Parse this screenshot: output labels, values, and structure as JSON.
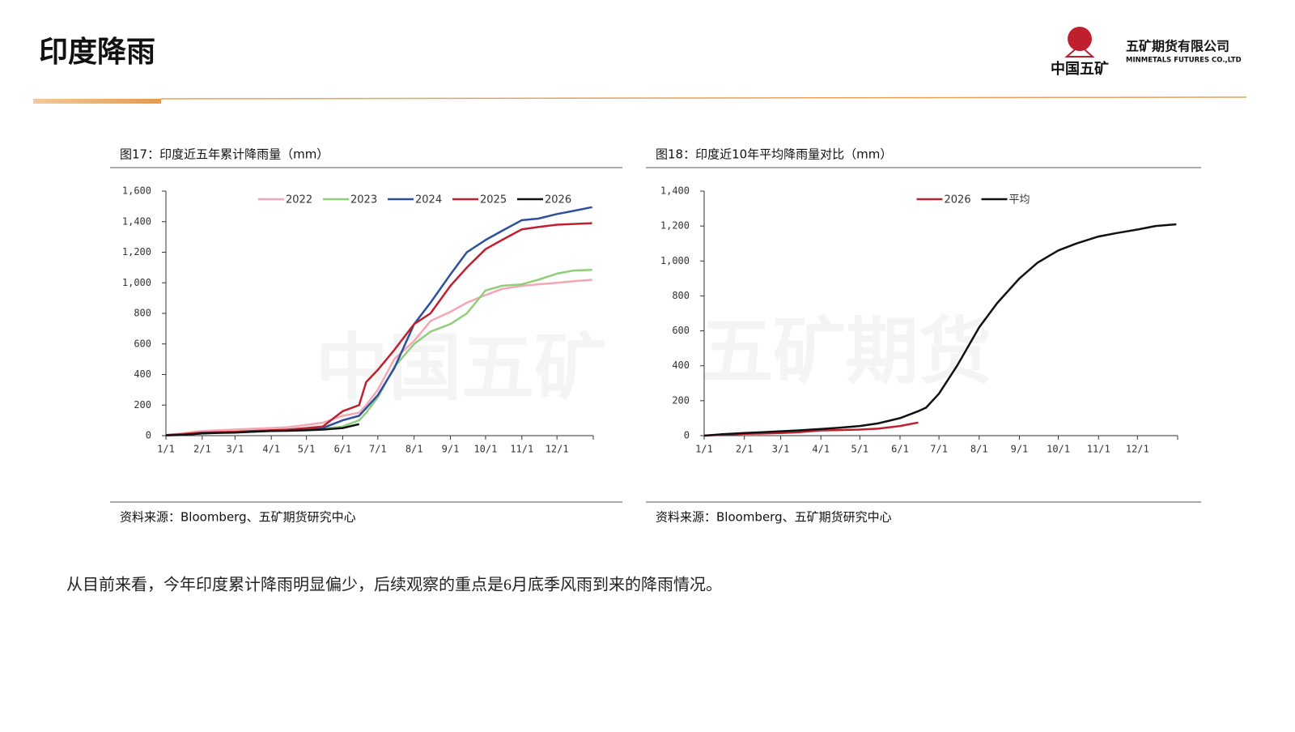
{
  "header": {
    "title": "印度降雨",
    "logo_name": "中国五矿",
    "company_cn": "五矿期货有限公司",
    "company_en": "MINMETALS FUTURES CO.,LTD"
  },
  "watermark": [
    "五矿期货",
    "中国五矿"
  ],
  "captions": [
    "图17：印度近五年累计降雨量（mm）",
    "图18：印度近10年平均降雨量对比（mm）"
  ],
  "sources": [
    "资料来源：Bloomberg、五矿期货研究中心",
    "资料来源：Bloomberg、五矿期货研究中心"
  ],
  "body_text": "从目前来看，今年印度累计降雨明显偏少，后续观察的重点是6月底季风雨到来的降雨情况。",
  "chart_data": [
    {
      "type": "line",
      "x": [
        1,
        15,
        32,
        46,
        60,
        74,
        91,
        105,
        121,
        135,
        152,
        166,
        172,
        182,
        196,
        213,
        227,
        244,
        258,
        274,
        288,
        305,
        319,
        335,
        349,
        365
      ],
      "xlim": [
        1,
        366
      ],
      "xticks": [
        {
          "value": 1,
          "label": "1/1"
        },
        {
          "value": 32,
          "label": "2/1"
        },
        {
          "value": 60,
          "label": "3/1"
        },
        {
          "value": 91,
          "label": "4/1"
        },
        {
          "value": 121,
          "label": "5/1"
        },
        {
          "value": 152,
          "label": "6/1"
        },
        {
          "value": 182,
          "label": "7/1"
        },
        {
          "value": 213,
          "label": "8/1"
        },
        {
          "value": 244,
          "label": "9/1"
        },
        {
          "value": 274,
          "label": "10/1"
        },
        {
          "value": 305,
          "label": "11/1"
        },
        {
          "value": 335,
          "label": "12/1"
        }
      ],
      "ylim": [
        0,
        1600
      ],
      "yticks": [
        0,
        200,
        400,
        600,
        800,
        {
          "value": 1000,
          "label": "1,000"
        },
        {
          "value": 1200,
          "label": "1,200"
        },
        {
          "value": 1400,
          "label": "1,400"
        },
        {
          "value": 1600,
          "label": "1,600"
        }
      ],
      "series": [
        {
          "name": "2022",
          "color": "#f4a6b4",
          "values": [
            5,
            15,
            30,
            35,
            40,
            45,
            50,
            55,
            70,
            85,
            130,
            150,
            200,
            300,
            500,
            620,
            750,
            810,
            870,
            920,
            960,
            980,
            990,
            1000,
            1010,
            1020
          ]
        },
        {
          "name": "2023",
          "color": "#8fcf7a",
          "values": [
            2,
            5,
            15,
            20,
            25,
            28,
            30,
            35,
            40,
            45,
            60,
            100,
            150,
            250,
            450,
            600,
            680,
            730,
            800,
            950,
            980,
            990,
            1020,
            1060,
            1080,
            1085
          ]
        },
        {
          "name": "2024",
          "color": "#2e4f9e",
          "values": [
            2,
            8,
            15,
            20,
            22,
            25,
            35,
            38,
            42,
            50,
            100,
            130,
            180,
            265,
            440,
            730,
            870,
            1055,
            1200,
            1280,
            1340,
            1410,
            1420,
            1450,
            1470,
            1495
          ]
        },
        {
          "name": "2025",
          "color": "#c0202e",
          "values": [
            3,
            10,
            20,
            22,
            25,
            30,
            35,
            40,
            50,
            60,
            160,
            200,
            350,
            430,
            560,
            730,
            800,
            980,
            1100,
            1220,
            1280,
            1350,
            1365,
            1380,
            1385,
            1390
          ]
        },
        {
          "name": "2026",
          "color": "#111111",
          "values": [
            2,
            5,
            15,
            18,
            20,
            25,
            30,
            32,
            35,
            40,
            50,
            75,
            null,
            null,
            null,
            null,
            null,
            null,
            null,
            null,
            null,
            null,
            null,
            null,
            null,
            null
          ]
        }
      ]
    },
    {
      "type": "line",
      "x": [
        1,
        15,
        32,
        46,
        60,
        74,
        91,
        105,
        121,
        135,
        152,
        166,
        172,
        182,
        196,
        213,
        227,
        244,
        258,
        274,
        288,
        305,
        319,
        335,
        349,
        365
      ],
      "xlim": [
        1,
        366
      ],
      "xticks": [
        {
          "value": 1,
          "label": "1/1"
        },
        {
          "value": 32,
          "label": "2/1"
        },
        {
          "value": 60,
          "label": "3/1"
        },
        {
          "value": 91,
          "label": "4/1"
        },
        {
          "value": 121,
          "label": "5/1"
        },
        {
          "value": 152,
          "label": "6/1"
        },
        {
          "value": 182,
          "label": "7/1"
        },
        {
          "value": 213,
          "label": "8/1"
        },
        {
          "value": 244,
          "label": "9/1"
        },
        {
          "value": 274,
          "label": "10/1"
        },
        {
          "value": 305,
          "label": "11/1"
        },
        {
          "value": 335,
          "label": "12/1"
        }
      ],
      "ylim": [
        0,
        1400
      ],
      "yticks": [
        0,
        200,
        400,
        600,
        800,
        {
          "value": 1000,
          "label": "1,000"
        },
        {
          "value": 1200,
          "label": "1,200"
        },
        {
          "value": 1400,
          "label": "1,400"
        }
      ],
      "series": [
        {
          "name": "2026",
          "color": "#c0202e",
          "values": [
            0,
            5,
            10,
            12,
            15,
            20,
            30,
            32,
            35,
            40,
            55,
            75,
            null,
            null,
            null,
            null,
            null,
            null,
            null,
            null,
            null,
            null,
            null,
            null,
            null,
            null
          ]
        },
        {
          "name": "平均",
          "color": "#111111",
          "values": [
            0,
            8,
            15,
            20,
            25,
            30,
            38,
            45,
            55,
            70,
            100,
            140,
            160,
            240,
            400,
            620,
            760,
            900,
            990,
            1060,
            1100,
            1140,
            1160,
            1180,
            1200,
            1210
          ]
        }
      ]
    }
  ]
}
